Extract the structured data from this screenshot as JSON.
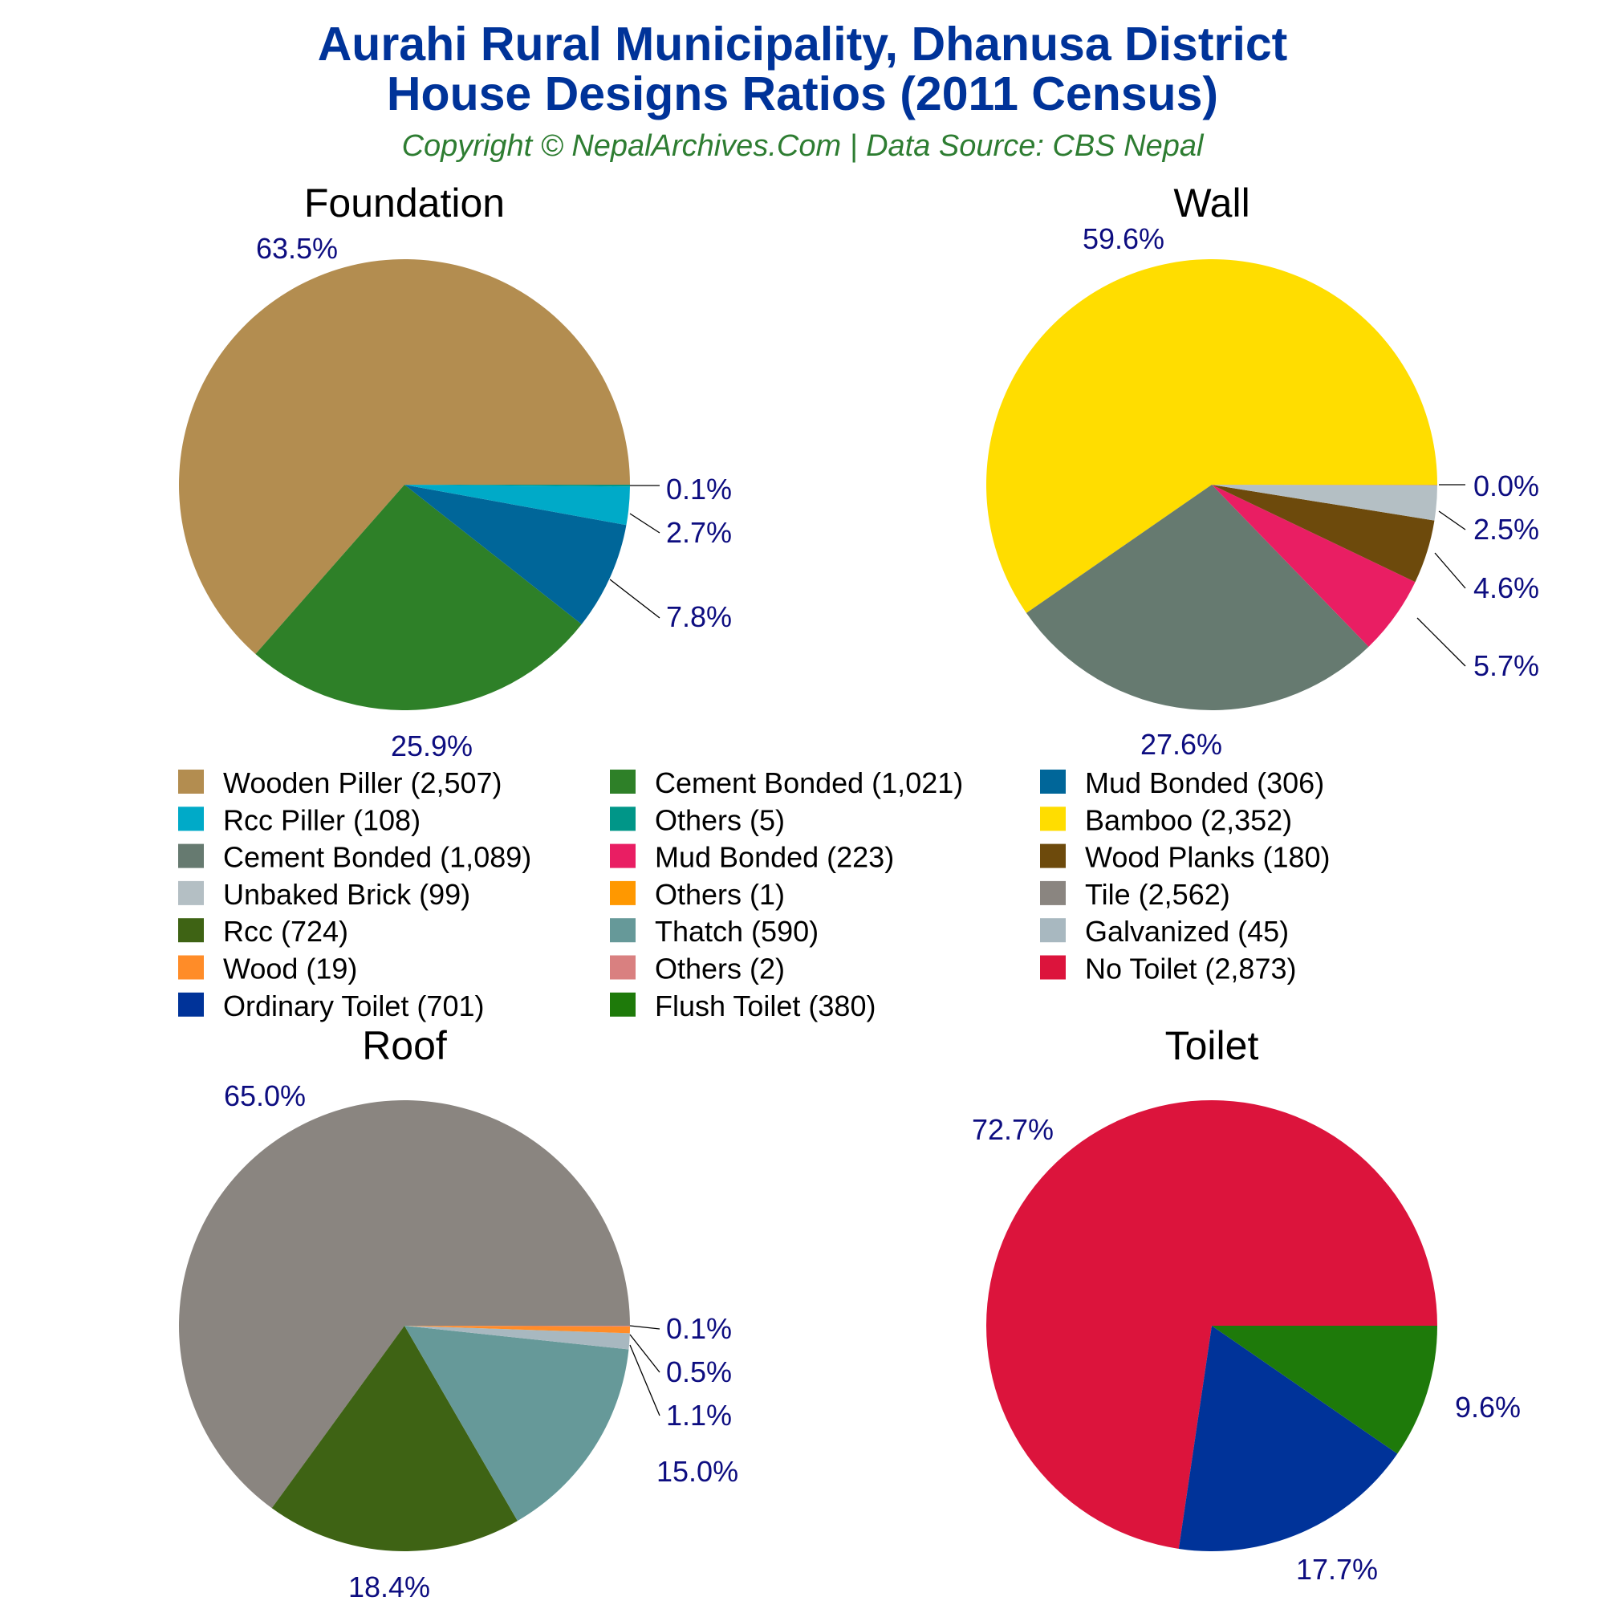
{
  "header": {
    "title_line1": "Aurahi Rural Municipality, Dhanusa District",
    "title_line2": "House Designs Ratios (2011 Census)",
    "subtitle": "Copyright © NepalArchives.Com | Data Source: CBS Nepal"
  },
  "chart_data": [
    {
      "type": "pie",
      "title": "Foundation",
      "slices": [
        {
          "label": "Wooden Piller (2,507)",
          "value": 2507,
          "pct": "63.5%",
          "color": "#b38d50"
        },
        {
          "label": "Cement Bonded (1,021)",
          "value": 1021,
          "pct": "25.9%",
          "color": "#2e8028"
        },
        {
          "label": "Mud Bonded (306)",
          "value": 306,
          "pct": "7.8%",
          "color": "#006699"
        },
        {
          "label": "Rcc Piller (108)",
          "value": 108,
          "pct": "2.7%",
          "color": "#00aac8"
        },
        {
          "label": "Others (5)",
          "value": 5,
          "pct": "0.1%",
          "color": "#009688"
        }
      ]
    },
    {
      "type": "pie",
      "title": "Wall",
      "slices": [
        {
          "label": "Bamboo (2,352)",
          "value": 2352,
          "pct": "59.6%",
          "color": "#ffdd00"
        },
        {
          "label": "Cement Bonded (1,089)",
          "value": 1089,
          "pct": "27.6%",
          "color": "#667a70"
        },
        {
          "label": "Mud Bonded (223)",
          "value": 223,
          "pct": "5.7%",
          "color": "#e91e63"
        },
        {
          "label": "Wood Planks (180)",
          "value": 180,
          "pct": "4.6%",
          "color": "#6d4a0c"
        },
        {
          "label": "Unbaked Brick (99)",
          "value": 99,
          "pct": "2.5%",
          "color": "#b4bfc4"
        },
        {
          "label": "Others (1)",
          "value": 1,
          "pct": "0.0%",
          "color": "#ff9800"
        }
      ]
    },
    {
      "type": "pie",
      "title": "Roof",
      "slices": [
        {
          "label": "Tile (2,562)",
          "value": 2562,
          "pct": "65.0%",
          "color": "#8a8580"
        },
        {
          "label": "Rcc (724)",
          "value": 724,
          "pct": "18.4%",
          "color": "#3e6314"
        },
        {
          "label": "Thatch (590)",
          "value": 590,
          "pct": "15.0%",
          "color": "#669999"
        },
        {
          "label": "Galvanized (45)",
          "value": 45,
          "pct": "1.1%",
          "color": "#a8b8c0"
        },
        {
          "label": "Wood (19)",
          "value": 19,
          "pct": "0.5%",
          "color": "#ff8c28"
        },
        {
          "label": "Others (2)",
          "value": 2,
          "pct": "0.1%",
          "color": "#d98080"
        }
      ]
    },
    {
      "type": "pie",
      "title": "Toilet",
      "slices": [
        {
          "label": "No Toilet (2,873)",
          "value": 2873,
          "pct": "72.7%",
          "color": "#dc143c"
        },
        {
          "label": "Ordinary Toilet (701)",
          "value": 701,
          "pct": "17.7%",
          "color": "#003399"
        },
        {
          "label": "Flush Toilet (380)",
          "value": 380,
          "pct": "9.6%",
          "color": "#1e7a0a"
        }
      ]
    }
  ],
  "legend": [
    {
      "label": "Wooden Piller (2,507)",
      "color": "#b38d50"
    },
    {
      "label": "Cement Bonded (1,021)",
      "color": "#2e8028"
    },
    {
      "label": "Mud Bonded (306)",
      "color": "#006699"
    },
    {
      "label": "Rcc Piller (108)",
      "color": "#00aac8"
    },
    {
      "label": "Others (5)",
      "color": "#009688"
    },
    {
      "label": "Bamboo (2,352)",
      "color": "#ffdd00"
    },
    {
      "label": "Cement Bonded (1,089)",
      "color": "#667a70"
    },
    {
      "label": "Mud Bonded (223)",
      "color": "#e91e63"
    },
    {
      "label": "Wood Planks (180)",
      "color": "#6d4a0c"
    },
    {
      "label": "Unbaked Brick (99)",
      "color": "#b4bfc4"
    },
    {
      "label": "Others (1)",
      "color": "#ff9800"
    },
    {
      "label": "Tile (2,562)",
      "color": "#8a8580"
    },
    {
      "label": "Rcc (724)",
      "color": "#3e6314"
    },
    {
      "label": "Thatch (590)",
      "color": "#669999"
    },
    {
      "label": "Galvanized (45)",
      "color": "#a8b8c0"
    },
    {
      "label": "Wood (19)",
      "color": "#ff8c28"
    },
    {
      "label": "Others (2)",
      "color": "#d98080"
    },
    {
      "label": "No Toilet (2,873)",
      "color": "#dc143c"
    },
    {
      "label": "Ordinary Toilet (701)",
      "color": "#003399"
    },
    {
      "label": "Flush Toilet (380)",
      "color": "#1e7a0a"
    }
  ]
}
